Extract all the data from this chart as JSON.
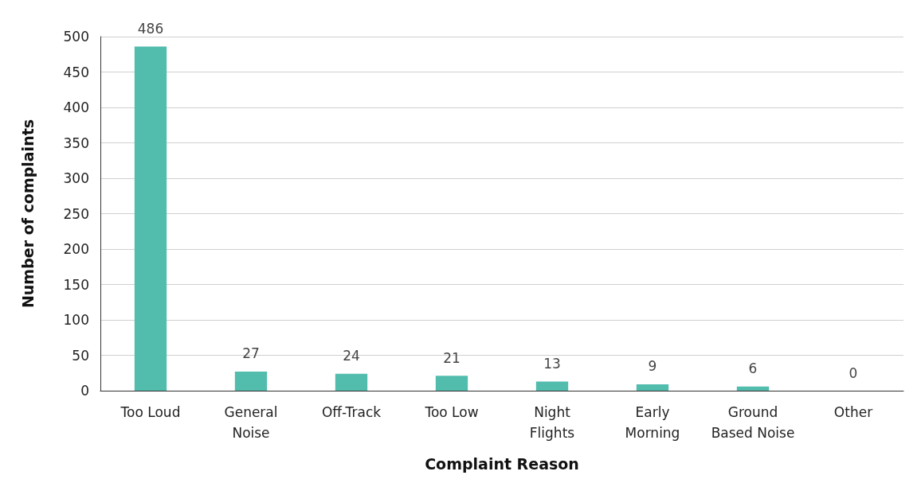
{
  "chart_data": {
    "type": "bar",
    "xlabel": "Complaint Reason",
    "ylabel": "Number of complaints",
    "categories": [
      "Too Loud",
      "General\nNoise",
      "Off-Track",
      "Too Low",
      "Night\nFlights",
      "Early\nMorning",
      "Ground\nBased Noise",
      "Other"
    ],
    "values": [
      486,
      27,
      24,
      21,
      13,
      9,
      6,
      0
    ],
    "color": "#52bcad",
    "ylim": [
      0,
      500
    ],
    "yticks": [
      0,
      50,
      100,
      150,
      200,
      250,
      300,
      350,
      400,
      450,
      500
    ],
    "grid": "y",
    "data_labels": true
  }
}
